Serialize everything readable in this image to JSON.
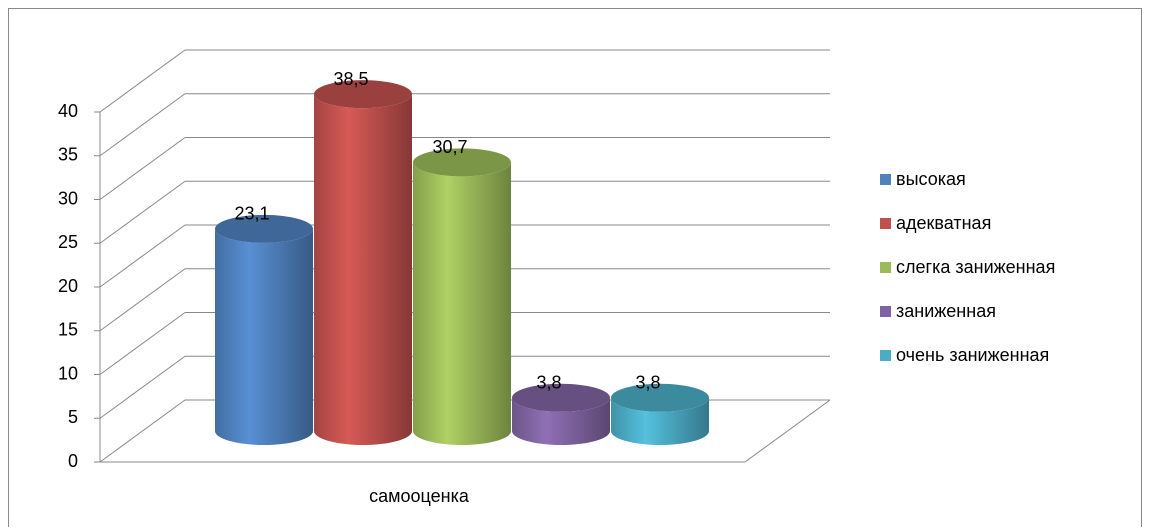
{
  "chart_data": {
    "type": "bar3d",
    "categories": [
      "самооценка"
    ],
    "series": [
      {
        "name": "высокая",
        "color": "#4f81bd",
        "values": [
          23.1
        ],
        "value_labels": [
          "23,1"
        ]
      },
      {
        "name": "адекватная",
        "color": "#c0504d",
        "values": [
          38.5
        ],
        "value_labels": [
          "38,5"
        ]
      },
      {
        "name": "слегка заниженная",
        "color": "#9bbb59",
        "values": [
          30.7
        ],
        "value_labels": [
          "30,7"
        ]
      },
      {
        "name": "заниженная",
        "color": "#8064a2",
        "values": [
          3.8
        ],
        "value_labels": [
          "3,8"
        ]
      },
      {
        "name": "очень заниженная",
        "color": "#4bacc6",
        "values": [
          3.8
        ],
        "value_labels": [
          "3,8"
        ]
      }
    ],
    "ylim": [
      0,
      40
    ],
    "yticks": [
      0,
      5,
      10,
      15,
      20,
      25,
      30,
      35,
      40
    ],
    "grid": true,
    "legend": "right"
  }
}
